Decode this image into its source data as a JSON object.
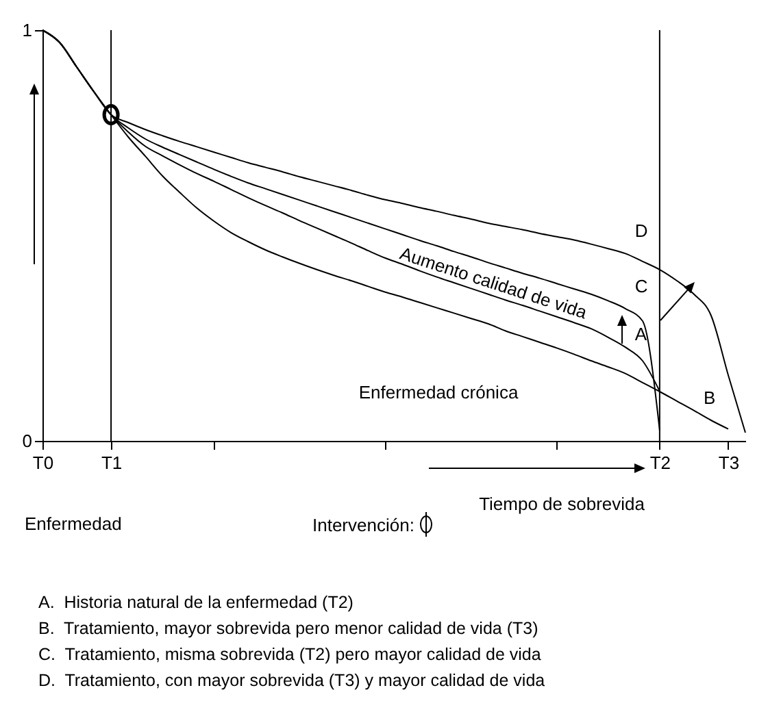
{
  "chart_data": {
    "type": "line",
    "categories": [
      "T0",
      null,
      null,
      null,
      "T1",
      null,
      null,
      null,
      null,
      null,
      null,
      null,
      null,
      null,
      null,
      null,
      null,
      null,
      null,
      null,
      null,
      null,
      null,
      null,
      null,
      null,
      null,
      null,
      null,
      null,
      null,
      null,
      null,
      null,
      null,
      null,
      "T2",
      null,
      null,
      null,
      "T3",
      null
    ],
    "ylim": [
      0,
      1
    ],
    "yticks": [
      0,
      1
    ],
    "xlabel": "Tiempo de sobrevida",
    "grid": false,
    "marker": "none",
    "line_style": "solid",
    "ref_lines": [
      {
        "axis": "x",
        "value": "T1"
      },
      {
        "axis": "x",
        "value": "T2"
      }
    ],
    "series": [
      {
        "name": "A",
        "color": "#000000",
        "values": [
          1.0,
          0.97,
          0.91,
          0.85,
          0.794,
          0.752,
          0.717,
          0.694,
          0.672,
          0.651,
          0.632,
          0.612,
          0.592,
          0.573,
          0.555,
          0.536,
          0.518,
          0.5,
          0.482,
          0.463,
          0.445,
          0.43,
          0.414,
          0.399,
          0.385,
          0.371,
          0.357,
          0.343,
          0.33,
          0.316,
          0.302,
          0.288,
          0.273,
          0.252,
          0.228,
          0.195,
          0.121,
          null,
          null,
          null,
          null,
          null
        ]
      },
      {
        "name": "B",
        "color": "#000000",
        "values": [
          1.0,
          0.97,
          0.91,
          0.85,
          0.794,
          0.74,
          0.693,
          0.645,
          0.605,
          0.567,
          0.535,
          0.507,
          0.485,
          0.465,
          0.448,
          0.432,
          0.417,
          0.403,
          0.39,
          0.376,
          0.362,
          0.35,
          0.337,
          0.324,
          0.311,
          0.298,
          0.285,
          0.268,
          0.254,
          0.24,
          0.226,
          0.211,
          0.195,
          0.18,
          0.164,
          0.142,
          0.12,
          0.097,
          0.074,
          0.05,
          0.029,
          null
        ]
      },
      {
        "name": "C",
        "color": "#000000",
        "values": [
          1.0,
          0.97,
          0.91,
          0.85,
          0.794,
          0.762,
          0.735,
          0.715,
          0.697,
          0.679,
          0.661,
          0.644,
          0.628,
          0.614,
          0.6,
          0.586,
          0.572,
          0.558,
          0.544,
          0.53,
          0.516,
          0.502,
          0.488,
          0.475,
          0.461,
          0.448,
          0.434,
          0.421,
          0.408,
          0.396,
          0.383,
          0.37,
          0.357,
          0.341,
          0.322,
          0.292,
          0.026,
          null,
          null,
          null,
          null,
          null
        ]
      },
      {
        "name": "D",
        "color": "#000000",
        "values": [
          1.0,
          0.97,
          0.91,
          0.85,
          0.794,
          0.775,
          0.758,
          0.743,
          0.729,
          0.716,
          0.703,
          0.69,
          0.677,
          0.666,
          0.655,
          0.643,
          0.632,
          0.621,
          0.61,
          0.598,
          0.587,
          0.578,
          0.568,
          0.559,
          0.549,
          0.54,
          0.53,
          0.522,
          0.514,
          0.505,
          0.497,
          0.489,
          0.479,
          0.468,
          0.456,
          0.437,
          0.417,
          0.39,
          0.357,
          0.305,
          0.16,
          0.02
        ]
      }
    ],
    "annotations": [
      "Aumento calidad de vida",
      "Enfermedad crónica",
      "Enfermedad",
      "Intervención:",
      "A.  Historia natural de la enfermedad (T2)",
      "B.  Tratamiento, mayor sobrevida pero menor calidad de vida (T3)",
      "C.  Tratamiento, misma sobrevida (T2) pero mayor calidad de vida",
      "D.  Tratamiento, con mayor sobrevida (T3) y mayor calidad de vida"
    ]
  }
}
